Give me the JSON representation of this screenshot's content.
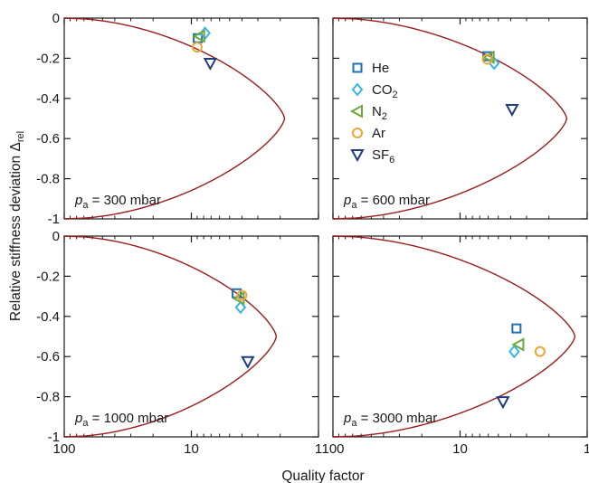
{
  "chart_data": {
    "type": "scatter",
    "layout": "2x2 panels, shared axes",
    "xlabel": "Quality factor",
    "ylabel": "Relative stiffness deviation Δ",
    "ylabel_sub": "rel",
    "x_scale": "log",
    "x_reversed": true,
    "xlim": [
      100,
      1
    ],
    "ylim": [
      -1,
      0
    ],
    "x_ticks": [
      100,
      10,
      1
    ],
    "x_tick_labels": [
      "100",
      "10",
      "1"
    ],
    "y_ticks": [
      0,
      -0.2,
      -0.4,
      -0.6,
      -0.8,
      -1
    ],
    "y_tick_labels": [
      "0",
      "-0.2",
      "-0.4",
      "-0.6",
      "-0.8",
      "-1"
    ],
    "grid": false,
    "legend_panel": 1,
    "legend_position": "left",
    "legend": [
      {
        "key": "He",
        "base": "He",
        "sub": "",
        "marker": "square",
        "color": "#1f6fb2"
      },
      {
        "key": "CO2",
        "base": "CO",
        "sub": "2",
        "marker": "diamond",
        "color": "#3cb4e6"
      },
      {
        "key": "N2",
        "base": "N",
        "sub": "2",
        "marker": "triangle-left",
        "color": "#6aaa3a"
      },
      {
        "key": "Ar",
        "base": "Ar",
        "sub": "",
        "marker": "circle",
        "color": "#e8a838"
      },
      {
        "key": "SF6",
        "base": "SF",
        "sub": "6",
        "marker": "triangle-down",
        "color": "#1f3d7a"
      }
    ],
    "curve_color": "#9b1b1f",
    "panels": [
      {
        "label_base": "p",
        "label_sub": "a",
        "label_rest": " = 300 mbar",
        "curve_qmin": 1.85,
        "points": [
          {
            "gas": "He",
            "q": 8.9,
            "y": -0.1
          },
          {
            "gas": "CO2",
            "q": 7.8,
            "y": -0.075
          },
          {
            "gas": "N2",
            "q": 8.6,
            "y": -0.09
          },
          {
            "gas": "Ar",
            "q": 9.0,
            "y": -0.145
          },
          {
            "gas": "SF6",
            "q": 7.1,
            "y": -0.225
          }
        ]
      },
      {
        "label_base": "p",
        "label_sub": "a",
        "label_rest": " = 600 mbar",
        "curve_qmin": 1.45,
        "points": [
          {
            "gas": "He",
            "q": 6.1,
            "y": -0.19
          },
          {
            "gas": "CO2",
            "q": 5.4,
            "y": -0.225
          },
          {
            "gas": "N2",
            "q": 5.9,
            "y": -0.195
          },
          {
            "gas": "Ar",
            "q": 6.1,
            "y": -0.205
          },
          {
            "gas": "SF6",
            "q": 3.9,
            "y": -0.455
          }
        ]
      },
      {
        "label_base": "p",
        "label_sub": "a",
        "label_rest": " = 1000 mbar",
        "curve_qmin": 2.15,
        "points": [
          {
            "gas": "He",
            "q": 4.4,
            "y": -0.285
          },
          {
            "gas": "CO2",
            "q": 4.1,
            "y": -0.355
          },
          {
            "gas": "N2",
            "q": 4.2,
            "y": -0.31
          },
          {
            "gas": "Ar",
            "q": 4.0,
            "y": -0.295
          },
          {
            "gas": "SF6",
            "q": 3.6,
            "y": -0.625
          }
        ]
      },
      {
        "label_base": "p",
        "label_sub": "a",
        "label_rest": " = 3000 mbar",
        "curve_qmin": 1.25,
        "points": [
          {
            "gas": "He",
            "q": 3.6,
            "y": -0.46
          },
          {
            "gas": "CO2",
            "q": 3.75,
            "y": -0.575
          },
          {
            "gas": "N2",
            "q": 3.45,
            "y": -0.54
          },
          {
            "gas": "Ar",
            "q": 2.35,
            "y": -0.575
          },
          {
            "gas": "SF6",
            "q": 4.6,
            "y": -0.825
          }
        ]
      }
    ]
  }
}
